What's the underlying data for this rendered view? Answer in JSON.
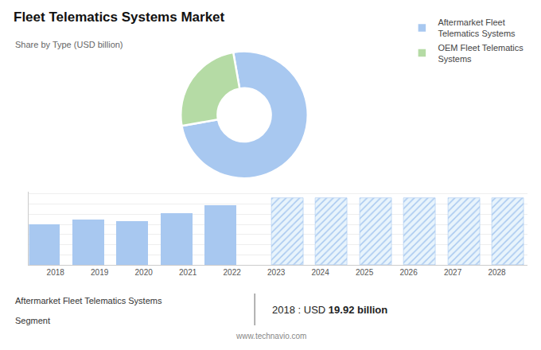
{
  "chart_data": [
    {
      "type": "donut",
      "title": "Fleet Telematics Systems Market",
      "subtitle": "Share by Type (USD billion)",
      "categories": [
        "Aftermarket Fleet\nTelematics Systems",
        "OEM Fleet Telematics\nSystems"
      ],
      "values": [
        75,
        25
      ],
      "colors": [
        "#a8c8f0",
        "#b5dba5"
      ],
      "legend": "upper right"
    },
    {
      "type": "bar",
      "x": [
        2018,
        2019,
        2020,
        2021,
        2022,
        2023,
        2024,
        2025,
        2026,
        2027,
        2028
      ],
      "series": [
        {
          "color": "#a8c8f0",
          "values": [
            19.92,
            22.5,
            21.5,
            25.5,
            29.5,
            null,
            null,
            null,
            null,
            null,
            null
          ]
        },
        {
          "color": "#e8f4fc",
          "marker": "hatched",
          "values": [
            null,
            null,
            null,
            null,
            null,
            33.0,
            33.0,
            33.0,
            33.0,
            33.0,
            33.0
          ]
        }
      ],
      "xlim": [
        2017.4,
        2028.7
      ],
      "xticks": [
        2018,
        2019,
        2020,
        2021,
        2022,
        2023,
        2024,
        2025,
        2026,
        2027,
        2028
      ],
      "ylim": [
        0,
        36
      ],
      "yticks": [
        0,
        5,
        10,
        15,
        20,
        25,
        30,
        35
      ],
      "grid": true,
      "tick_labels": "x",
      "annotations": [
        "Aftermarket Fleet Telematics Systems",
        "Segment",
        "2018 : USD ",
        "19.92 billion",
        "www.technavio.com"
      ]
    }
  ]
}
